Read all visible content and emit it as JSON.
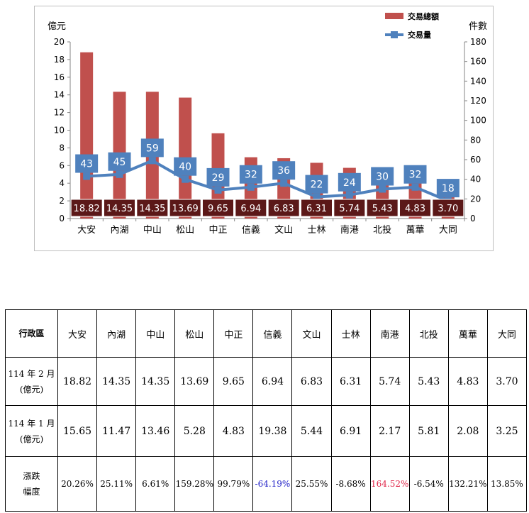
{
  "chart_data": {
    "type": "bar",
    "categories": [
      "大安",
      "內湖",
      "中山",
      "松山",
      "中正",
      "信義",
      "文山",
      "士林",
      "南港",
      "北投",
      "萬華",
      "大同"
    ],
    "series": [
      {
        "name": "交易總額",
        "axis": "left",
        "kind": "bar",
        "values": [
          18.82,
          14.35,
          14.35,
          13.69,
          9.65,
          6.94,
          6.83,
          6.31,
          5.74,
          5.43,
          4.83,
          3.7
        ]
      },
      {
        "name": "交易量",
        "axis": "right",
        "kind": "line",
        "values": [
          43,
          45,
          59,
          40,
          29,
          32,
          36,
          22,
          24,
          30,
          32,
          18
        ]
      }
    ],
    "value_labels": [
      "18.82",
      "14.35",
      "14.35",
      "13.69",
      "9.65",
      "6.94",
      "6.83",
      "6.31",
      "5.74",
      "5.43",
      "4.83",
      "3.70"
    ],
    "y_left_label": "億元",
    "y_right_label": "件數",
    "y_left_ticks": [
      "0",
      "2",
      "4",
      "6",
      "8",
      "10",
      "12",
      "14",
      "16",
      "18",
      "20"
    ],
    "y_right_ticks": [
      "0",
      "20",
      "40",
      "60",
      "80",
      "100",
      "120",
      "140",
      "160",
      "180"
    ],
    "ylim_left": [
      0,
      20
    ],
    "ylim_right": [
      0,
      180
    ],
    "legend_position": "top-right",
    "colors": {
      "bar": "#c0504d",
      "line": "#4f81bd",
      "value_box": "#5b1818"
    }
  },
  "table": {
    "header_label": "行政區",
    "districts": [
      "大安",
      "內湖",
      "中山",
      "松山",
      "中正",
      "信義",
      "文山",
      "士林",
      "南港",
      "北投",
      "萬華",
      "大同"
    ],
    "rows": [
      {
        "label_line1": "114 年 2 月",
        "label_line2": "(億元)",
        "values": [
          "18.82",
          "14.35",
          "14.35",
          "13.69",
          "9.65",
          "6.94",
          "6.83",
          "6.31",
          "5.74",
          "5.43",
          "4.83",
          "3.70"
        ]
      },
      {
        "label_line1": "114 年 1 月",
        "label_line2": "(億元)",
        "values": [
          "15.65",
          "11.47",
          "13.46",
          "5.28",
          "4.83",
          "19.38",
          "5.44",
          "6.91",
          "2.17",
          "5.81",
          "2.08",
          "3.25"
        ]
      },
      {
        "label_line1": "漲跌",
        "label_line2": "幅度",
        "values": [
          "20.26%",
          "25.11%",
          "6.61%",
          "159.28%",
          "99.79%",
          "-64.19%",
          "25.55%",
          "-8.68%",
          "164.52%",
          "-6.54%",
          "132.21%",
          "13.85%"
        ]
      }
    ],
    "highlight_colors": {
      "-64.19%": "#2424c8",
      "164.52%": "#e0284b"
    }
  }
}
